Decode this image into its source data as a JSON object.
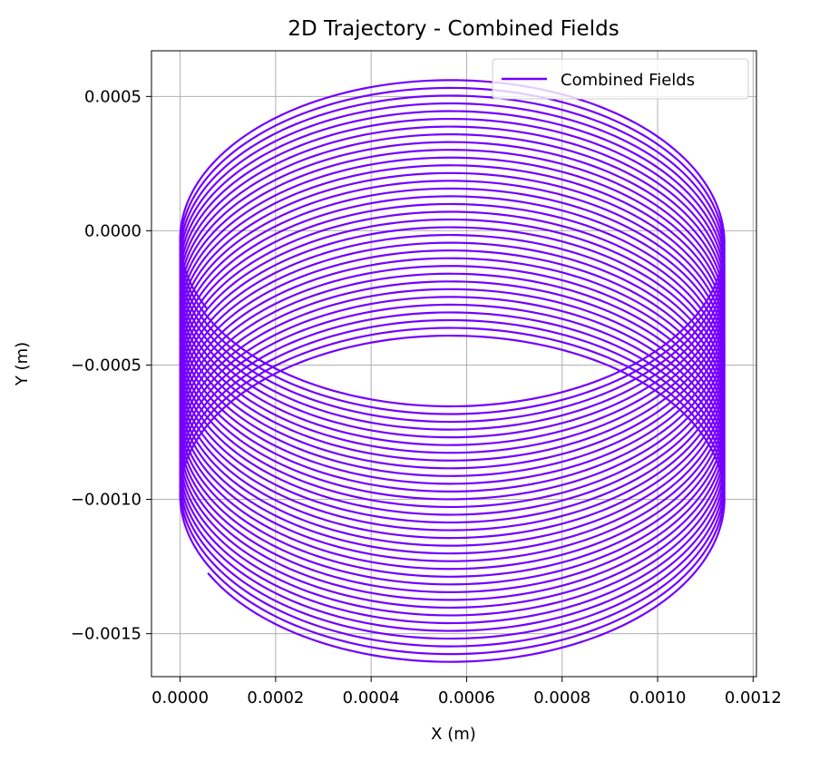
{
  "chart_data": {
    "type": "line",
    "title": "2D Trajectory - Combined Fields",
    "xlabel": "X (m)",
    "ylabel": "Y (m)",
    "xlim": [
      -6e-05,
      0.001207
    ],
    "ylim": [
      -0.00166,
      0.00067
    ],
    "x_ticks": [
      0.0,
      0.0002,
      0.0004,
      0.0006,
      0.0008,
      0.001,
      0.0012
    ],
    "x_tick_labels": [
      "0.0000",
      "0.0002",
      "0.0004",
      "0.0006",
      "0.0008",
      "0.0010",
      "0.0012"
    ],
    "y_ticks": [
      0.0005,
      0.0,
      -0.0005,
      -0.001,
      -0.0015
    ],
    "y_tick_labels": [
      "0.0005",
      "0.0000",
      "−0.0005",
      "−0.0010",
      "−0.0015"
    ],
    "grid": true,
    "legend_position": "top-right",
    "series": [
      {
        "name": "Combined Fields",
        "color": "#7300ff",
        "start_point": [
          6e-05,
          -0.00126
        ],
        "center_x": 0.00057,
        "radius_x": 0.00057,
        "first_loop_center_y": -0.00101,
        "last_loop_center_y": -3e-05,
        "radius_y": 0.0006,
        "loops": 34
      }
    ]
  }
}
